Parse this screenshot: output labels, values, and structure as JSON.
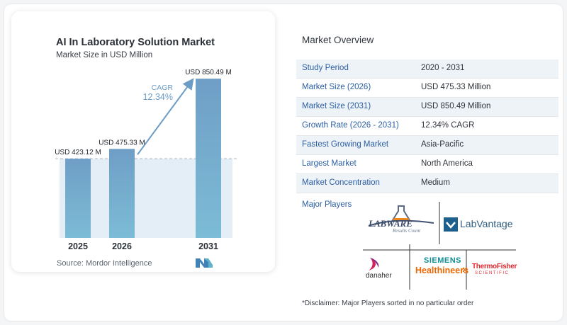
{
  "chart_data": {
    "type": "bar",
    "title": "AI In Laboratory Solution Market",
    "subtitle": "Market Size in USD Million",
    "categories": [
      "2025",
      "2026",
      "2031"
    ],
    "values": [
      423.12,
      475.33,
      850.49
    ],
    "value_labels": [
      "USD 423.12 M",
      "USD 475.33 M",
      "USD 850.49 M"
    ],
    "ylim": [
      0,
      900
    ],
    "annotation": {
      "label": "CAGR",
      "value": "12.34%"
    },
    "source": "Source:  Mordor Intelligence",
    "colors": {
      "bar_top": "#6f9ec6",
      "bar_bottom": "#78b8d3",
      "shade": "#e4eef6",
      "arrow": "#6a9cc6",
      "cagr_text": "#6a9cc6"
    }
  },
  "overview": {
    "title": "Market Overview",
    "rows": [
      {
        "label": "Study Period",
        "value": "2020 - 2031"
      },
      {
        "label": "Market Size (2026)",
        "value": "USD 475.33 Million"
      },
      {
        "label": "Market Size (2031)",
        "value": "USD 850.49 Million"
      },
      {
        "label": "Growth Rate (2026 - 2031)",
        "value": "12.34% CAGR"
      },
      {
        "label": "Fastest Growing Market",
        "value": "Asia-Pacific"
      },
      {
        "label": "Largest Market",
        "value": "North America"
      },
      {
        "label": "Market Concentration",
        "value": "Medium"
      }
    ]
  },
  "players": {
    "label": "Major Players",
    "logos": {
      "labware": {
        "name": "LABWARE",
        "tagline": "Results Count"
      },
      "labvantage": {
        "name": "LabVantage"
      },
      "danaher": {
        "name": "danaher"
      },
      "siemens": {
        "line1": "SIEMENS",
        "line2": "Healthineers"
      },
      "thermo": {
        "line1": "ThermoFisher",
        "line2": "SCIENTIFIC"
      }
    }
  },
  "disclaimer": "*Disclaimer: Major Players sorted in no particular order"
}
